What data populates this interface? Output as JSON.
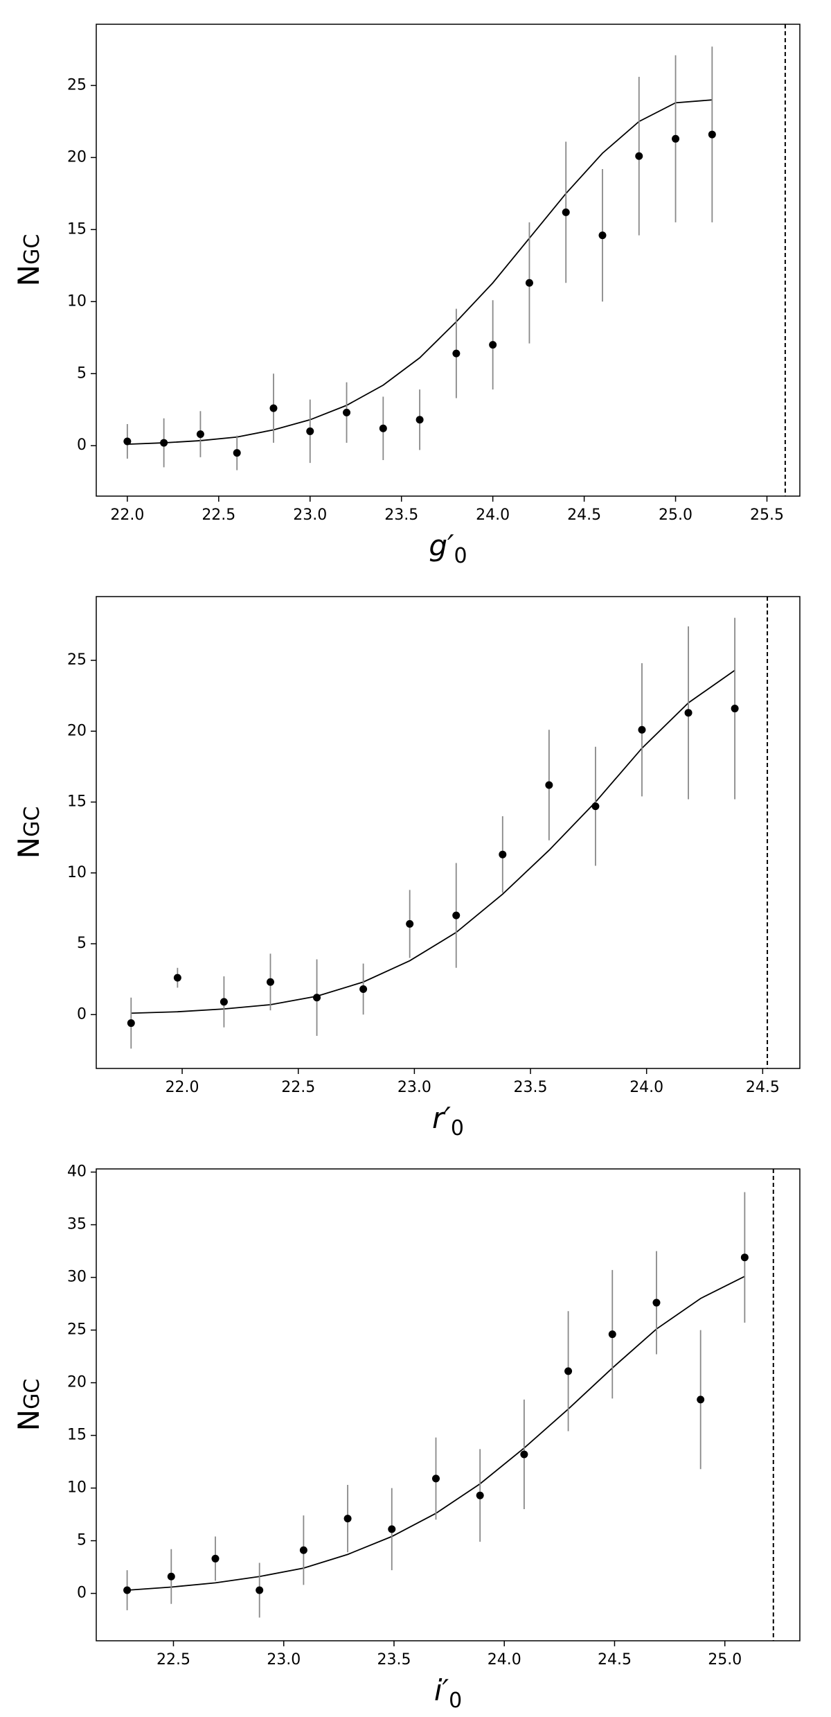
{
  "chart_data": [
    {
      "type": "scatter",
      "x_label": "g′",
      "x_label_sub": "0",
      "y_label": "N",
      "y_label_sub": "GC",
      "x": [
        22.0,
        22.2,
        22.4,
        22.6,
        22.8,
        23.0,
        23.2,
        23.4,
        23.6,
        23.8,
        24.0,
        24.2,
        24.4,
        24.6,
        24.8,
        25.0,
        25.2
      ],
      "values": [
        0.3,
        0.2,
        0.8,
        -0.5,
        2.6,
        1.0,
        2.3,
        1.2,
        1.8,
        6.4,
        7.0,
        11.3,
        16.2,
        14.6,
        20.1,
        21.3,
        21.6
      ],
      "errors": [
        1.2,
        1.7,
        1.6,
        1.2,
        2.4,
        2.2,
        2.1,
        2.2,
        2.1,
        3.1,
        3.1,
        4.2,
        4.9,
        4.6,
        5.5,
        5.8,
        6.1
      ],
      "line_values": [
        0.1,
        0.2,
        0.35,
        0.6,
        1.1,
        1.8,
        2.8,
        4.2,
        6.1,
        8.6,
        11.3,
        14.4,
        17.5,
        20.3,
        22.5,
        23.8,
        24.0
      ],
      "vline": 25.6,
      "color": "#000000",
      "error_color": "#888888",
      "xlim": [
        21.83,
        25.68
      ],
      "ylim": [
        -3.5,
        29.25
      ],
      "xticks": [
        {
          "value": 22.0,
          "label": "22.0"
        },
        22.5,
        {
          "value": 23.0,
          "label": "23.0"
        },
        23.5,
        {
          "value": 24.0,
          "label": "24.0"
        },
        24.5,
        {
          "value": 25.0,
          "label": "25.0"
        },
        25.5
      ],
      "yticks": [
        0,
        5,
        10,
        15,
        20,
        25
      ]
    },
    {
      "type": "scatter",
      "x_label": "r′",
      "x_label_sub": "0",
      "y_label": "N",
      "y_label_sub": "GC",
      "x": [
        21.78,
        21.98,
        22.18,
        22.38,
        22.58,
        22.78,
        22.98,
        23.18,
        23.38,
        23.58,
        23.78,
        23.98,
        24.18,
        24.38
      ],
      "values": [
        -0.6,
        2.6,
        0.9,
        2.3,
        1.2,
        1.8,
        6.4,
        7.0,
        11.3,
        16.2,
        14.7,
        20.1,
        21.3,
        21.6
      ],
      "errors": [
        1.8,
        0.7,
        1.8,
        2.0,
        2.7,
        1.8,
        2.4,
        3.7,
        2.7,
        3.9,
        4.2,
        4.7,
        6.1,
        6.4
      ],
      "line_values": [
        0.1,
        0.2,
        0.4,
        0.7,
        1.3,
        2.3,
        3.8,
        5.8,
        8.5,
        11.6,
        15.0,
        18.8,
        22.0,
        24.3
      ],
      "vline": 24.52,
      "color": "#000000",
      "error_color": "#888888",
      "xlim": [
        21.63,
        24.66
      ],
      "ylim": [
        -3.8,
        29.5
      ],
      "xticks": [
        {
          "value": 22.0,
          "label": "22.0"
        },
        22.5,
        {
          "value": 23.0,
          "label": "23.0"
        },
        23.5,
        {
          "value": 24.0,
          "label": "24.0"
        },
        24.5
      ],
      "yticks": [
        0,
        5,
        10,
        15,
        20,
        25
      ]
    },
    {
      "type": "scatter",
      "x_label": "i′",
      "x_label_sub": "0",
      "y_label": "N",
      "y_label_sub": "GC",
      "x": [
        22.29,
        22.49,
        22.69,
        22.89,
        23.09,
        23.29,
        23.49,
        23.69,
        23.89,
        24.09,
        24.29,
        24.49,
        24.69,
        24.89,
        25.09
      ],
      "values": [
        0.3,
        1.6,
        3.3,
        0.3,
        4.1,
        7.1,
        6.1,
        10.9,
        9.3,
        13.2,
        21.1,
        24.6,
        27.6,
        18.4,
        31.9
      ],
      "errors": [
        1.9,
        2.6,
        2.1,
        2.6,
        3.3,
        3.2,
        3.9,
        3.9,
        4.4,
        5.2,
        5.7,
        6.1,
        4.9,
        6.6,
        6.2
      ],
      "line_values": [
        0.3,
        0.6,
        1.0,
        1.6,
        2.4,
        3.7,
        5.4,
        7.6,
        10.4,
        13.8,
        17.5,
        21.4,
        25.1,
        28.0,
        30.1
      ],
      "vline": 25.22,
      "color": "#000000",
      "error_color": "#888888",
      "xlim": [
        22.15,
        25.34
      ],
      "ylim": [
        -4.5,
        40.3
      ],
      "xticks": [
        22.5,
        {
          "value": 23.0,
          "label": "23.0"
        },
        23.5,
        {
          "value": 24.0,
          "label": "24.0"
        },
        24.5,
        {
          "value": 25.0,
          "label": "25.0"
        }
      ],
      "yticks": [
        0,
        5,
        10,
        15,
        20,
        25,
        30,
        35,
        40
      ]
    }
  ]
}
